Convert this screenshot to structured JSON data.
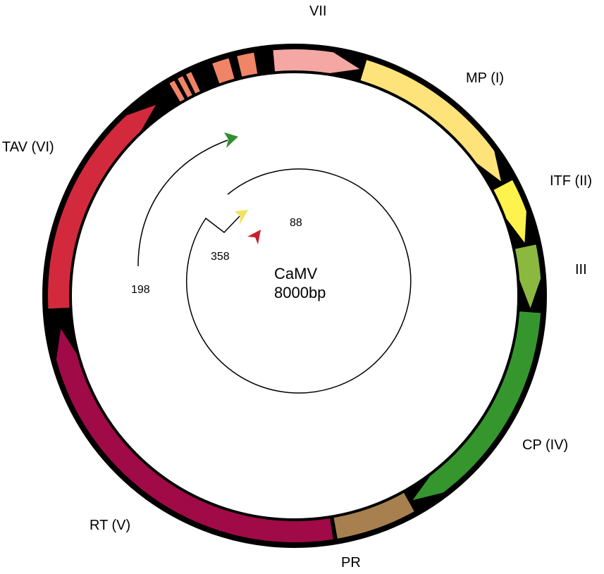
{
  "title_line1": "CaMV",
  "title_line2": "8000bp",
  "genes": [
    {
      "id": "vii",
      "label": "VII",
      "color": "#f4a7a3"
    },
    {
      "id": "mp",
      "label": "MP (I)",
      "color": "#fde37a"
    },
    {
      "id": "itf",
      "label": "ITF (II)",
      "color": "#fef24c"
    },
    {
      "id": "iii",
      "label": "III",
      "color": "#8bb83f"
    },
    {
      "id": "cp",
      "label": "CP (IV)",
      "color": "#36962e"
    },
    {
      "id": "pr",
      "label": "PR",
      "color": "#a8804f"
    },
    {
      "id": "rt",
      "label": "RT (V)",
      "color": "#a00a47"
    },
    {
      "id": "tav",
      "label": "TAV (VI)",
      "color": "#d22a3c"
    }
  ],
  "small_orfs": {
    "color": "#f08466"
  },
  "transcripts": [
    {
      "label": "198",
      "color": "#2f8f2f"
    },
    {
      "label": "88",
      "color": "#f5e05a"
    },
    {
      "label": "358",
      "color": "#c8202e"
    }
  ]
}
